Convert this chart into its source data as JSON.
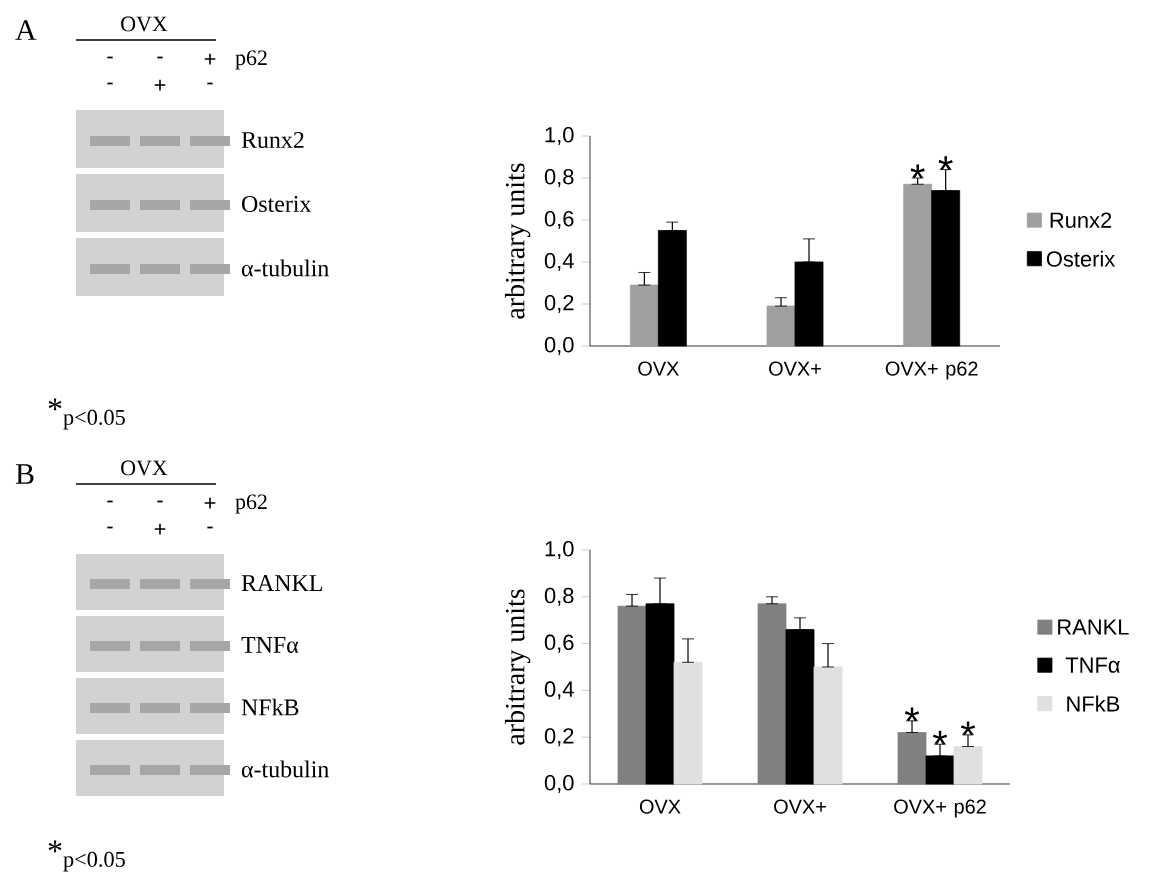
{
  "chart_data": [
    {
      "type": "other",
      "title": "A",
      "annotations": [
        "OVX",
        "-",
        "-",
        "+",
        "p62",
        "-",
        "+",
        "-",
        "Runx2",
        "Osterix",
        "α-tubulin"
      ]
    },
    {
      "type": "bar",
      "ylabel": "arbitrary units",
      "categories": [
        "OVX",
        "OVX+",
        "OVX+ p62"
      ],
      "series": [
        {
          "name": "Runx2",
          "color": "#a0a0a0",
          "values": [
            0.29,
            0.19,
            0.77
          ],
          "errors": [
            [
              0.29,
              0.35
            ],
            [
              0.19,
              0.23
            ],
            [
              0.77,
              0.8
            ]
          ]
        },
        {
          "name": "Osterix",
          "color": "#000000",
          "values": [
            0.55,
            0.4,
            0.74
          ],
          "errors": [
            [
              0.55,
              0.59
            ],
            [
              0.4,
              0.51
            ],
            [
              0.74,
              0.84
            ]
          ]
        }
      ],
      "ylim": [
        0,
        1
      ],
      "yticks": [
        {
          "value": 0,
          "label": "0,0"
        },
        {
          "value": 0.2,
          "label": "0,2"
        },
        {
          "value": 0.4,
          "label": "0,4"
        },
        {
          "value": 0.6,
          "label": "0,6"
        },
        {
          "value": 0.8,
          "label": "0,8"
        },
        {
          "value": 1,
          "label": "1,0"
        }
      ],
      "legend": "right",
      "grid": false,
      "annotations": [
        "*$_{p<0.05}$",
        "*",
        "*"
      ]
    },
    {
      "type": "other",
      "title": "B",
      "annotations": [
        "OVX",
        "-",
        "-",
        "+",
        "p62",
        "-",
        "+",
        "-",
        "RANKL",
        "TNFα",
        "NFkB",
        "α-tubulin"
      ]
    },
    {
      "type": "bar",
      "ylabel": "arbitrary units",
      "categories": [
        "OVX",
        "OVX+",
        "OVX+ p62"
      ],
      "series": [
        {
          "name": "RANKL",
          "color": "#808080",
          "values": [
            0.76,
            0.77,
            0.22
          ],
          "errors": [
            [
              0.76,
              0.81
            ],
            [
              0.77,
              0.8
            ],
            [
              0.22,
              0.27
            ]
          ]
        },
        {
          "name": "TNFα",
          "color": "#000000",
          "values": [
            0.77,
            0.66,
            0.12
          ],
          "errors": [
            [
              0.77,
              0.88
            ],
            [
              0.66,
              0.71
            ],
            [
              0.12,
              0.17
            ]
          ]
        },
        {
          "name": "NFkB",
          "color": "#e0e0e0",
          "values": [
            0.52,
            0.5,
            0.16
          ],
          "errors": [
            [
              0.52,
              0.62
            ],
            [
              0.5,
              0.6
            ],
            [
              0.16,
              0.21
            ]
          ]
        }
      ],
      "ylim": [
        0,
        1
      ],
      "yticks": [
        {
          "value": 0,
          "label": "0,0"
        },
        {
          "value": 0.2,
          "label": "0,2"
        },
        {
          "value": 0.4,
          "label": "0,4"
        },
        {
          "value": 0.6,
          "label": "0,6"
        },
        {
          "value": 0.8,
          "label": "0,8"
        },
        {
          "value": 1,
          "label": "1,0"
        }
      ],
      "legend": "right",
      "grid": false,
      "annotations": [
        "*$_{p<0.05}$",
        "*",
        "*",
        "*"
      ]
    }
  ]
}
